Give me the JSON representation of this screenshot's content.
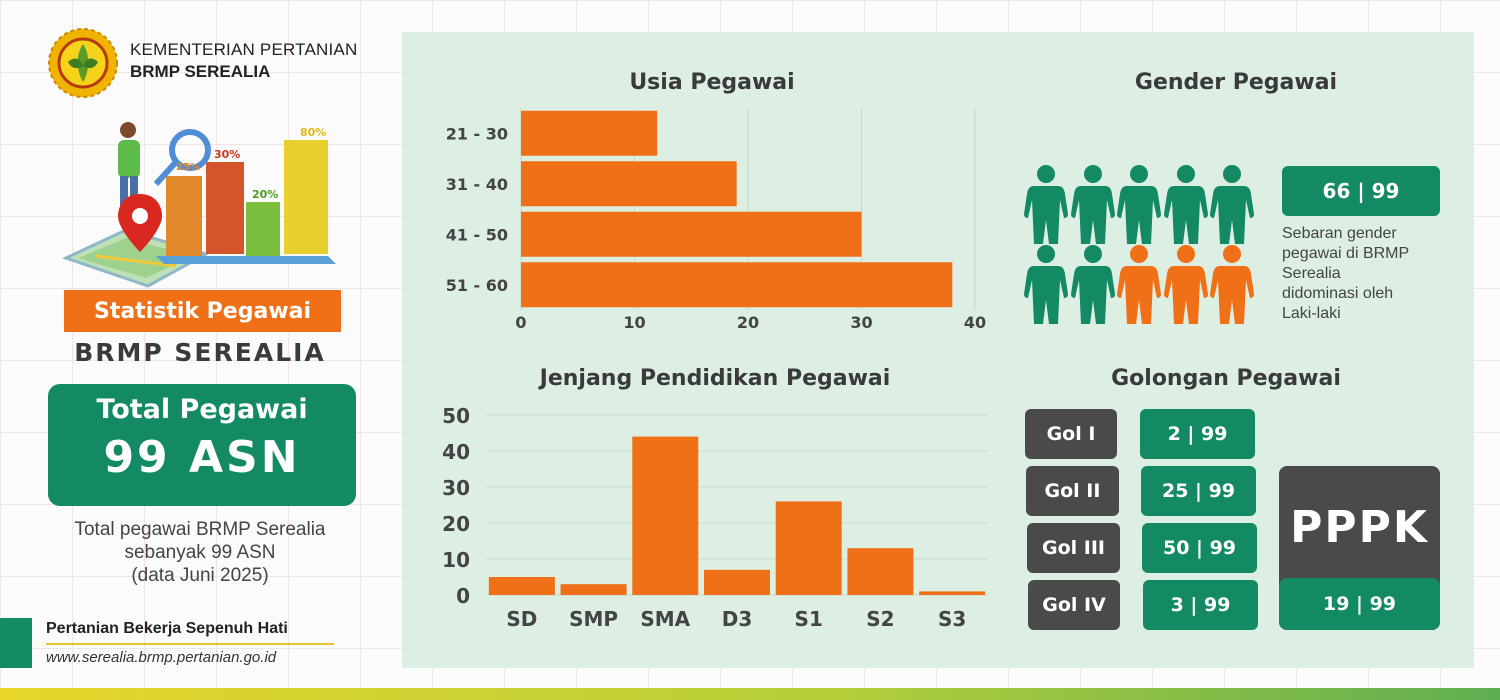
{
  "org": {
    "line1": "KEMENTERIAN PERTANIAN",
    "line2": "BRMP SEREALIA"
  },
  "banner": {
    "title": "Statistik Pegawai",
    "subtitle": "BRMP SEREALIA"
  },
  "total": {
    "title": "Total Pegawai",
    "value": "99 ASN",
    "desc_lines": [
      "Total pegawai BRMP Serealia",
      "sebanyak 99 ASN",
      "(data Juni 2025)"
    ]
  },
  "illustration": {
    "bar_labels": [
      "25%",
      "30%",
      "20%",
      "80%"
    ]
  },
  "footer": {
    "tagline": "Pertanian Bekerja Sepenuh Hati",
    "website": "www.serealia.brmp.pertanian.go.id"
  },
  "gender": {
    "title": "Gender Pegawai",
    "ratio": "66 | 99",
    "desc_lines": [
      "Sebaran gender",
      "pegawai di BRMP",
      "Serealia",
      "didominasi oleh",
      "Laki-laki"
    ],
    "icon_colors": [
      "green",
      "green",
      "green",
      "green",
      "green",
      "green",
      "green",
      "orange",
      "orange",
      "orange"
    ]
  },
  "golongan": {
    "title": "Golongan Pegawai",
    "rows": [
      {
        "label": "Gol I",
        "value": "2 | 99"
      },
      {
        "label": "Gol II",
        "value": "25 | 99"
      },
      {
        "label": "Gol III",
        "value": "50 | 99"
      },
      {
        "label": "Gol IV",
        "value": "3 | 99"
      }
    ],
    "pppk": {
      "label": "PPPK",
      "value": "19 | 99"
    }
  },
  "colors": {
    "orange": "#f07018",
    "green": "#138a63",
    "grey": "#4a4a4a",
    "panel": "#dcefe2"
  },
  "chart_data": [
    {
      "type": "bar",
      "orientation": "horizontal",
      "title": "Usia Pegawai",
      "categories": [
        "21 - 30",
        "31 - 40",
        "41 - 50",
        "51 - 60"
      ],
      "values": [
        12,
        19,
        30,
        38
      ],
      "xlim": [
        0,
        40
      ],
      "ticks": [
        0,
        10,
        20,
        30,
        40
      ],
      "grid": true
    },
    {
      "type": "bar",
      "orientation": "vertical",
      "title": "Jenjang Pendidikan Pegawai",
      "categories": [
        "SD",
        "SMP",
        "SMA",
        "D3",
        "S1",
        "S2",
        "S3"
      ],
      "values": [
        5,
        3,
        44,
        7,
        26,
        13,
        1
      ],
      "ylim": [
        0,
        50
      ],
      "ticks": [
        0,
        10,
        20,
        30,
        40,
        50
      ],
      "grid": true
    }
  ]
}
